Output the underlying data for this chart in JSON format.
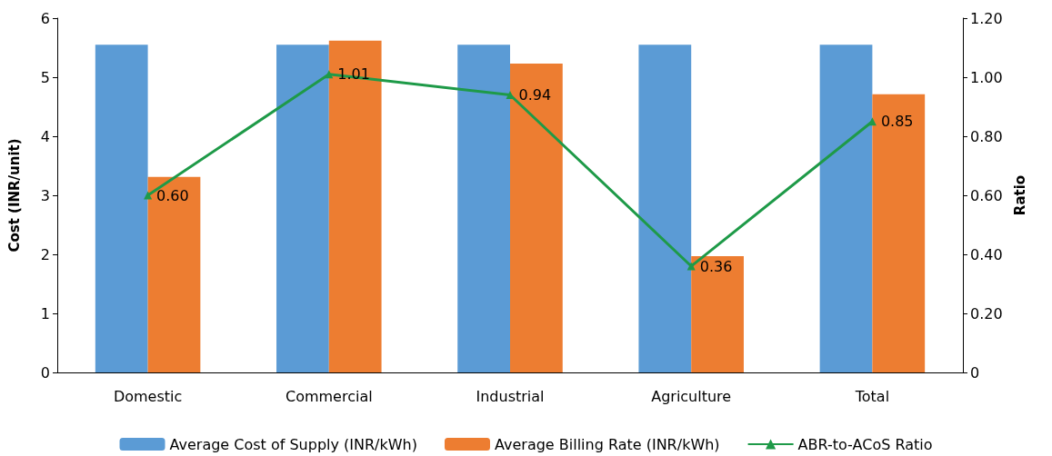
{
  "chart_data": {
    "type": "bar",
    "ylabel": "Cost (INR/unit)",
    "y2label": "Ratio",
    "categories": [
      "Domestic",
      "Commercial",
      "Industrial",
      "Agriculture",
      "Total"
    ],
    "series": [
      {
        "name": "Average Cost of Supply (INR/kWh)",
        "color": "#5b9bd5",
        "values": [
          5.55,
          5.55,
          5.55,
          5.55,
          5.55
        ]
      },
      {
        "name": "Average Billing Rate (INR/kWh)",
        "color": "#ed7d31",
        "values": [
          3.31,
          5.62,
          5.23,
          1.97,
          4.71
        ]
      },
      {
        "name": "ABR-to-ACoS Ratio",
        "type": "line",
        "axis": "y2",
        "color": "#1e9a48",
        "values": [
          0.6,
          1.01,
          0.94,
          0.36,
          0.85
        ],
        "value_labels": [
          "0.60",
          "1.01",
          "0.94",
          "0.36",
          "0.85"
        ]
      }
    ],
    "ylim": [
      0,
      6
    ],
    "yticks": [
      0,
      1,
      2,
      3,
      4,
      5,
      6
    ],
    "y2lim": [
      0,
      1.2
    ],
    "y2ticks": [
      0,
      {
        "value": 0.2,
        "label": "0.20"
      },
      {
        "value": 0.4,
        "label": "0.40"
      },
      {
        "value": 0.6,
        "label": "0.60"
      },
      {
        "value": 0.8,
        "label": "0.80"
      },
      {
        "value": 1,
        "label": "1.00"
      },
      {
        "value": 1.2,
        "label": "1.20"
      }
    ],
    "grid": false,
    "legend": "bottom",
    "marker": "triangle",
    "line_style": "solid"
  }
}
